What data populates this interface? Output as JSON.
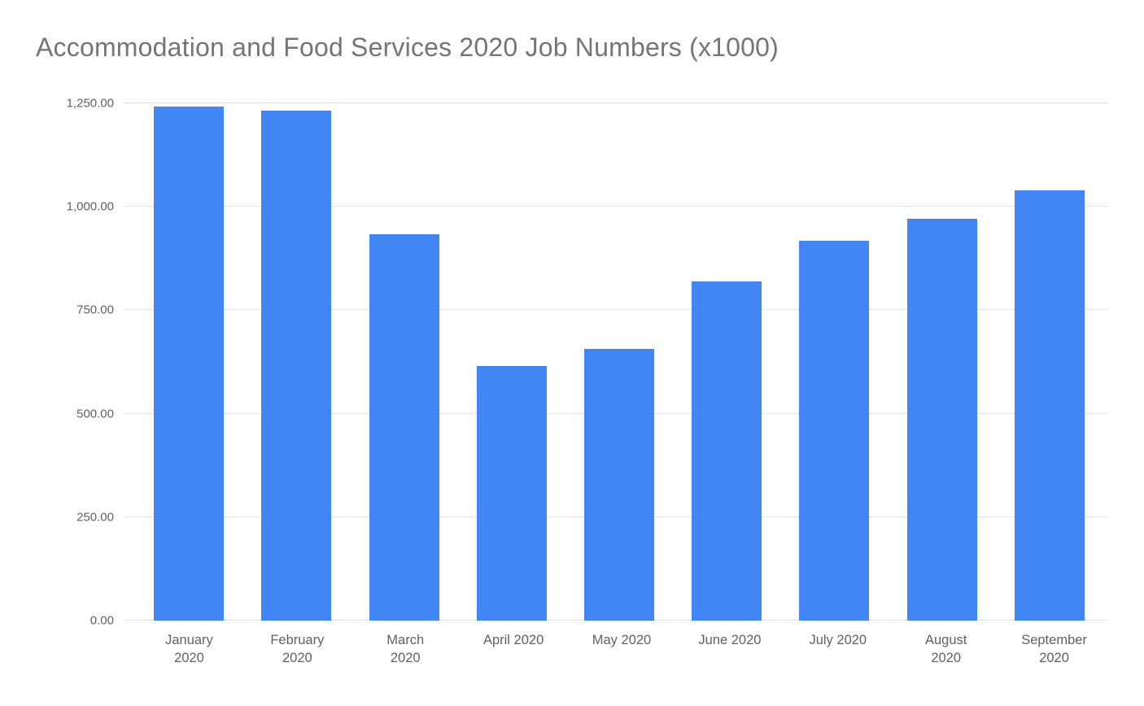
{
  "chart_data": {
    "type": "bar",
    "title": "Accommodation and Food Services 2020 Job Numbers (x1000)",
    "xlabel": "",
    "ylabel": "",
    "ylim": [
      0,
      1250
    ],
    "grid": true,
    "legend": "none",
    "background_color": "#ffffff",
    "bar_color": "#4285f4",
    "gridline_color": "#e3e3e3",
    "title_color": "#757575",
    "axis_label_color": "#616161",
    "categories": [
      "January 2020",
      "February 2020",
      "March 2020",
      "April 2020",
      "May 2020",
      "June 2020",
      "July 2020",
      "August 2020",
      "September 2020"
    ],
    "category_lines": [
      [
        "January",
        "2020"
      ],
      [
        "February",
        "2020"
      ],
      [
        "March",
        "2020"
      ],
      [
        "April 2020"
      ],
      [
        "May 2020"
      ],
      [
        "June 2020"
      ],
      [
        "July 2020"
      ],
      [
        "August",
        "2020"
      ],
      [
        "September",
        "2020"
      ]
    ],
    "values": [
      1243,
      1232,
      934,
      616,
      657,
      820,
      917,
      970,
      1040
    ],
    "y_ticks": [
      {
        "value": 0,
        "label": "0.00"
      },
      {
        "value": 250,
        "label": "250.00"
      },
      {
        "value": 500,
        "label": "500.00"
      },
      {
        "value": 750,
        "label": "750.00"
      },
      {
        "value": 1000,
        "label": "1,000.00"
      },
      {
        "value": 1250,
        "label": "1,250.00"
      }
    ]
  }
}
